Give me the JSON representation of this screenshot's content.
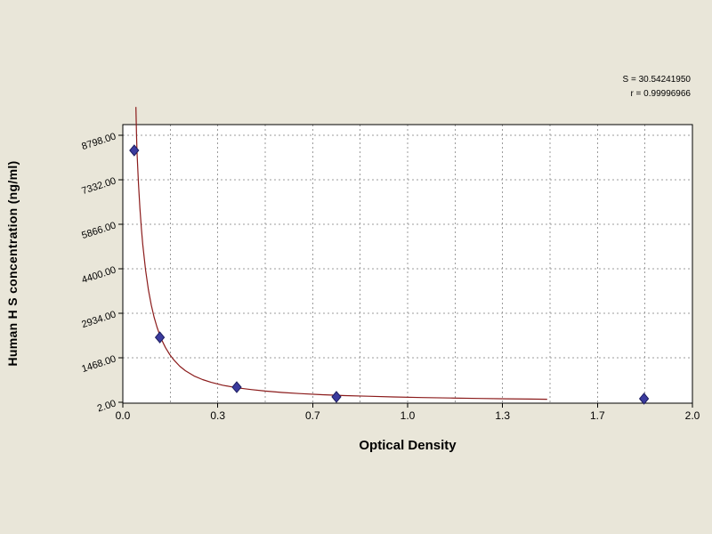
{
  "page": {
    "background_color": "#e9e6d9"
  },
  "chart_data": {
    "type": "scatter",
    "title": "",
    "xlabel": "Optical Density",
    "ylabel": "Human H S concentration (ng/ml)",
    "xlim": [
      0.0,
      2.0
    ],
    "ylim": [
      2.0,
      8798.0
    ],
    "x_tick_labels": [
      "0.0",
      "0.3",
      "0.7",
      "1.0",
      "1.3",
      "1.7",
      "2.0"
    ],
    "y_ticks": [
      {
        "value": 2.0,
        "label": "2.00"
      },
      {
        "value": 1468.0,
        "label": "1468.00"
      },
      {
        "value": 2934.0,
        "label": "2934.00"
      },
      {
        "value": 4400.0,
        "label": "4400.00"
      },
      {
        "value": 5866.0,
        "label": "5866.00"
      },
      {
        "value": 7332.0,
        "label": "7332.00"
      },
      {
        "value": 8798.0,
        "label": "8798.00"
      }
    ],
    "grid": {
      "visible": true,
      "style": "dashed",
      "x_divisions": 12
    },
    "legend": null,
    "annotations": [
      "S = 30.54241950",
      "r = 0.99996966"
    ],
    "colors": {
      "page_bg": "#e9e6d9",
      "plot_bg": "#ffffff",
      "axis": "#000000",
      "grid": "#9b9b9b",
      "curve": "#8b1b1b",
      "marker_fill": "#3b3b9e",
      "marker_stroke": "#1c1c5e"
    },
    "series": [
      {
        "name": "fitted-curve",
        "type": "line",
        "points": [
          [
            0.046,
            9730
          ],
          [
            0.048,
            8798
          ],
          [
            0.05,
            8200
          ],
          [
            0.055,
            7200
          ],
          [
            0.06,
            6400
          ],
          [
            0.065,
            5750
          ],
          [
            0.07,
            5200
          ],
          [
            0.08,
            4350
          ],
          [
            0.09,
            3700
          ],
          [
            0.1,
            3200
          ],
          [
            0.11,
            2800
          ],
          [
            0.12,
            2480
          ],
          [
            0.13,
            2210
          ],
          [
            0.14,
            1990
          ],
          [
            0.15,
            1800
          ],
          [
            0.165,
            1570
          ],
          [
            0.18,
            1390
          ],
          [
            0.2,
            1190
          ],
          [
            0.22,
            1040
          ],
          [
            0.25,
            870
          ],
          [
            0.28,
            750
          ],
          [
            0.31,
            660
          ],
          [
            0.35,
            565
          ],
          [
            0.4,
            480
          ],
          [
            0.45,
            420
          ],
          [
            0.5,
            370
          ],
          [
            0.56,
            325
          ],
          [
            0.62,
            290
          ],
          [
            0.7,
            250
          ],
          [
            0.78,
            222
          ],
          [
            0.86,
            200
          ],
          [
            0.95,
            178
          ],
          [
            1.05,
            158
          ],
          [
            1.15,
            142
          ],
          [
            1.25,
            128
          ],
          [
            1.35,
            116
          ],
          [
            1.43,
            108
          ],
          [
            1.49,
            103
          ]
        ]
      },
      {
        "name": "standard-points",
        "type": "scatter",
        "marker": "diamond",
        "points": [
          [
            0.04,
            8300
          ],
          [
            0.13,
            2140
          ],
          [
            0.4,
            500
          ],
          [
            0.75,
            180
          ],
          [
            1.83,
            120
          ]
        ]
      }
    ]
  }
}
